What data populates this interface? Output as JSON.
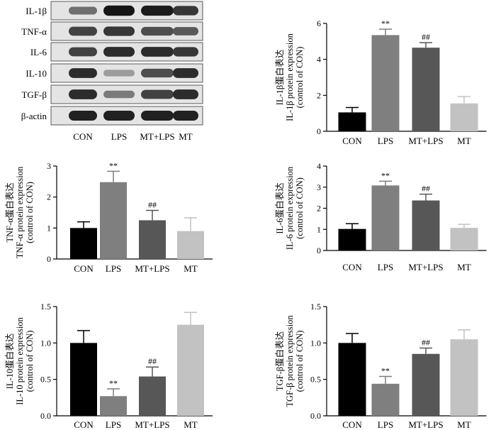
{
  "blot": {
    "rows": [
      "IL-1β",
      "TNF-α",
      "IL-6",
      "IL-10",
      "TGF-β",
      "β-actin"
    ],
    "lanes": [
      "CON",
      "LPS",
      "MT+LPS",
      "MT"
    ],
    "band_intensity": [
      [
        0.55,
        0.95,
        0.92,
        0.8
      ],
      [
        0.75,
        0.8,
        0.7,
        0.65
      ],
      [
        0.75,
        0.85,
        0.85,
        0.8
      ],
      [
        0.85,
        0.35,
        0.7,
        0.85
      ],
      [
        0.85,
        0.5,
        0.75,
        0.85
      ],
      [
        0.9,
        0.9,
        0.9,
        0.9
      ]
    ]
  },
  "chart_data": [
    {
      "type": "bar",
      "id": "il1b",
      "categories": [
        "CON",
        "LPS",
        "MT+LPS",
        "MT"
      ],
      "values": [
        1.05,
        5.35,
        4.65,
        1.55
      ],
      "errors": [
        0.27,
        0.33,
        0.28,
        0.38
      ],
      "annotations": [
        "",
        "**",
        "##",
        ""
      ],
      "ylim": [
        0,
        6
      ],
      "yticks": [
        "0",
        "2",
        "4",
        "6"
      ],
      "ylabel_line1": "IL-1β蛋白表达",
      "ylabel_line2": "IL-1β protein expression",
      "ylabel_line3": "(control of CON)"
    },
    {
      "type": "bar",
      "id": "tnfa",
      "categories": [
        "CON",
        "LPS",
        "MT+LPS",
        "MT"
      ],
      "values": [
        1.0,
        2.48,
        1.25,
        0.9
      ],
      "errors": [
        0.2,
        0.35,
        0.32,
        0.43
      ],
      "annotations": [
        "",
        "**",
        "##",
        ""
      ],
      "ylim": [
        0,
        3
      ],
      "yticks": [
        "0",
        "1",
        "2",
        "3"
      ],
      "ylabel_line1": "TNF-α蛋白表达",
      "ylabel_line2": "TNF-α protein expression",
      "ylabel_line3": "(control of CON)"
    },
    {
      "type": "bar",
      "id": "il6",
      "categories": [
        "CON",
        "LPS",
        "MT+LPS",
        "MT"
      ],
      "values": [
        1.02,
        3.08,
        2.37,
        1.07
      ],
      "errors": [
        0.25,
        0.2,
        0.3,
        0.17
      ],
      "annotations": [
        "",
        "**",
        "##",
        ""
      ],
      "ylim": [
        0,
        4
      ],
      "yticks": [
        "0",
        "1",
        "2",
        "3",
        "4"
      ],
      "ylabel_line1": "IL-6蛋白表达",
      "ylabel_line2": "IL-6 protein expression",
      "ylabel_line3": "(control of CON)"
    },
    {
      "type": "bar",
      "id": "il10",
      "categories": [
        "CON",
        "LPS",
        "MT+LPS",
        "MT"
      ],
      "values": [
        1.0,
        0.27,
        0.54,
        1.25
      ],
      "errors": [
        0.17,
        0.1,
        0.13,
        0.17
      ],
      "annotations": [
        "",
        "**",
        "##",
        ""
      ],
      "ylim": [
        0,
        1.5
      ],
      "yticks": [
        "0.0",
        "0.5",
        "1.0",
        "1.5"
      ],
      "ylabel_line1": "IL-10蛋白表达",
      "ylabel_line2": "IL-10 protein expression",
      "ylabel_line3": "(control of CON)"
    },
    {
      "type": "bar",
      "id": "tgfb",
      "categories": [
        "CON",
        "LPS",
        "MT+LPS",
        "MT"
      ],
      "values": [
        1.0,
        0.44,
        0.85,
        1.05
      ],
      "errors": [
        0.13,
        0.1,
        0.08,
        0.13
      ],
      "annotations": [
        "",
        "**",
        "##",
        ""
      ],
      "ylim": [
        0,
        1.5
      ],
      "yticks": [
        "0.0",
        "0.5",
        "1.0",
        "1.5"
      ],
      "ylabel_line1": "TGF-β蛋白表达",
      "ylabel_line2": "TGF-β protein expression",
      "ylabel_line3": "(control of CON)"
    }
  ],
  "colors": {
    "bars": [
      "#000000",
      "#7f7f7f",
      "#575757",
      "#c2c2c2"
    ],
    "axis": "#000000"
  }
}
